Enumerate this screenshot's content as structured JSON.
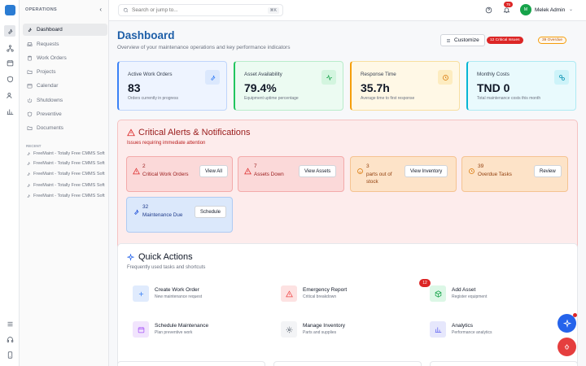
{
  "rail": {
    "icons": [
      "logo-icon",
      "wrench-icon",
      "network-icon",
      "calendar-icon",
      "shield-icon",
      "users-icon",
      "chart-icon"
    ],
    "bottom_icons": [
      "sliders-icon",
      "headset-icon",
      "phone-icon"
    ]
  },
  "sidebar": {
    "heading": "OPERATIONS",
    "items": [
      {
        "label": "Dashboard",
        "icon": "dashboard-icon",
        "active": true
      },
      {
        "label": "Requests",
        "icon": "inbox-icon"
      },
      {
        "label": "Work Orders",
        "icon": "clipboard-icon"
      },
      {
        "label": "Projects",
        "icon": "folder-icon"
      },
      {
        "label": "Calendar",
        "icon": "calendar-icon"
      },
      {
        "label": "Shutdowns",
        "icon": "power-icon"
      },
      {
        "label": "Preventive",
        "icon": "shield-icon"
      },
      {
        "label": "Documents",
        "icon": "folder-icon"
      }
    ],
    "recent_heading": "RECENT",
    "recent": [
      "FreeMaint - Totally Free CMMS Soft",
      "FreeMaint - Totally Free CMMS Soft",
      "FreeMaint - Totally Free CMMS Soft",
      "FreeMaint - Totally Free CMMS Soft",
      "FreeMaint - Totally Free CMMS Soft"
    ]
  },
  "topbar": {
    "search_placeholder": "Search or jump to...",
    "search_shortcut": "⌘K",
    "notification_count": "75",
    "avatar_initial": "M",
    "user_name": "Melek Admin"
  },
  "header": {
    "title": "Dashboard",
    "subtitle": "Overview of your maintenance operations and key performance indicators",
    "customize_label": "Customize",
    "critical_pill": "12 Critical Issues",
    "overdue_pill": "39 Overdue"
  },
  "kpis": [
    {
      "label": "Active Work Orders",
      "value": "83",
      "sub": "Orders currently in progress",
      "icon": "wrench-icon",
      "color": "#3b82f6"
    },
    {
      "label": "Asset Availability",
      "value": "79.4%",
      "sub": "Equipment uptime percentage",
      "icon": "activity-icon",
      "color": "#22c55e"
    },
    {
      "label": "Response Time",
      "value": "35.7h",
      "sub": "Average time to first response",
      "icon": "clock-icon",
      "color": "#f59e0b"
    },
    {
      "label": "Monthly Costs",
      "value": "TND 0",
      "sub": "Total maintenance costs this month",
      "icon": "link-icon",
      "color": "#06b6d4"
    }
  ],
  "alerts": {
    "title": "Critical Alerts & Notifications",
    "subtitle": "Issues requiring immediate attention",
    "cards": [
      {
        "count": "2",
        "label": "Critical Work Orders",
        "button": "View All",
        "icon": "alert-triangle-icon",
        "tone": "red"
      },
      {
        "count": "7",
        "label": "Assets Down",
        "button": "View Assets",
        "icon": "alert-triangle-icon",
        "tone": "red"
      },
      {
        "count": "3",
        "label": "parts out of stock",
        "button": "View Inventory",
        "icon": "package-icon",
        "tone": "amber"
      },
      {
        "count": "39",
        "label": "Overdue Tasks",
        "button": "Review",
        "icon": "clock-icon",
        "tone": "amber"
      },
      {
        "count": "32",
        "label": "Maintenance Due",
        "button": "Schedule",
        "icon": "wrench-icon",
        "tone": "blue"
      }
    ]
  },
  "quick_actions": {
    "title": "Quick Actions",
    "subtitle": "Frequently used tasks and shortcuts",
    "badge": "12",
    "items": [
      {
        "title": "Create Work Order",
        "sub": "New maintenance request",
        "icon": "plus-icon",
        "color": "#3b82f6"
      },
      {
        "title": "Emergency Report",
        "sub": "Critical breakdown",
        "icon": "alert-triangle-icon",
        "color": "#ef4444"
      },
      {
        "title": "Add Asset",
        "sub": "Register equipment",
        "icon": "box-icon",
        "color": "#22c55e"
      },
      {
        "title": "Schedule Maintenance",
        "sub": "Plan preventive work",
        "icon": "calendar-icon",
        "color": "#a855f7"
      },
      {
        "title": "Manage Inventory",
        "sub": "Parts and supplies",
        "icon": "gear-icon",
        "color": "#6b7280"
      },
      {
        "title": "Analytics",
        "sub": "Performance analytics",
        "icon": "bar-chart-icon",
        "color": "#6366f1"
      }
    ]
  }
}
